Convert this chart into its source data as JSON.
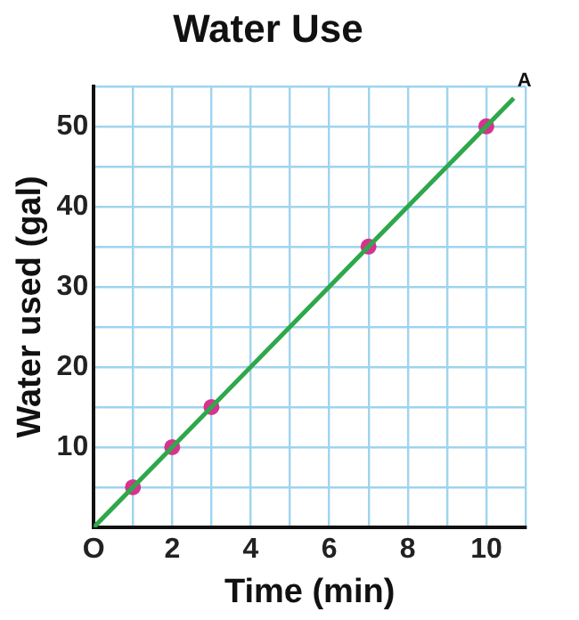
{
  "chart_data": {
    "type": "scatter",
    "title": "Water Use",
    "xlabel": "Time (min)",
    "ylabel": "Water used (gal)",
    "xlim": [
      0,
      11
    ],
    "ylim": [
      0,
      55
    ],
    "xticks": [
      {
        "value": 0,
        "label": "O"
      },
      {
        "value": 1,
        "label": null
      },
      2,
      {
        "value": 3,
        "label": null
      },
      4,
      {
        "value": 5,
        "label": null
      },
      6,
      {
        "value": 7,
        "label": null
      },
      8,
      {
        "value": 9,
        "label": null
      },
      10,
      {
        "value": 11,
        "label": null
      }
    ],
    "yticks": [
      {
        "value": 0,
        "label": null
      },
      {
        "value": 5,
        "label": null
      },
      10,
      {
        "value": 15,
        "label": null
      },
      20,
      {
        "value": 25,
        "label": null
      },
      30,
      {
        "value": 35,
        "label": null
      },
      40,
      {
        "value": 45,
        "label": null
      },
      50,
      {
        "value": 55,
        "label": null
      }
    ],
    "grid": true,
    "legend": false,
    "series": [
      {
        "type": "line",
        "color": "#2ea84a",
        "marker": "none",
        "x": [
          0,
          10.7
        ],
        "values": [
          0,
          53.5
        ]
      },
      {
        "type": "scatter",
        "color": "#d6338f",
        "marker": "circle",
        "x": [
          1,
          2,
          3,
          7,
          10
        ],
        "values": [
          5,
          10,
          15,
          35,
          50
        ]
      }
    ],
    "annotations": [
      {
        "text": "A",
        "x": 10.7,
        "y": 53.5
      }
    ]
  }
}
